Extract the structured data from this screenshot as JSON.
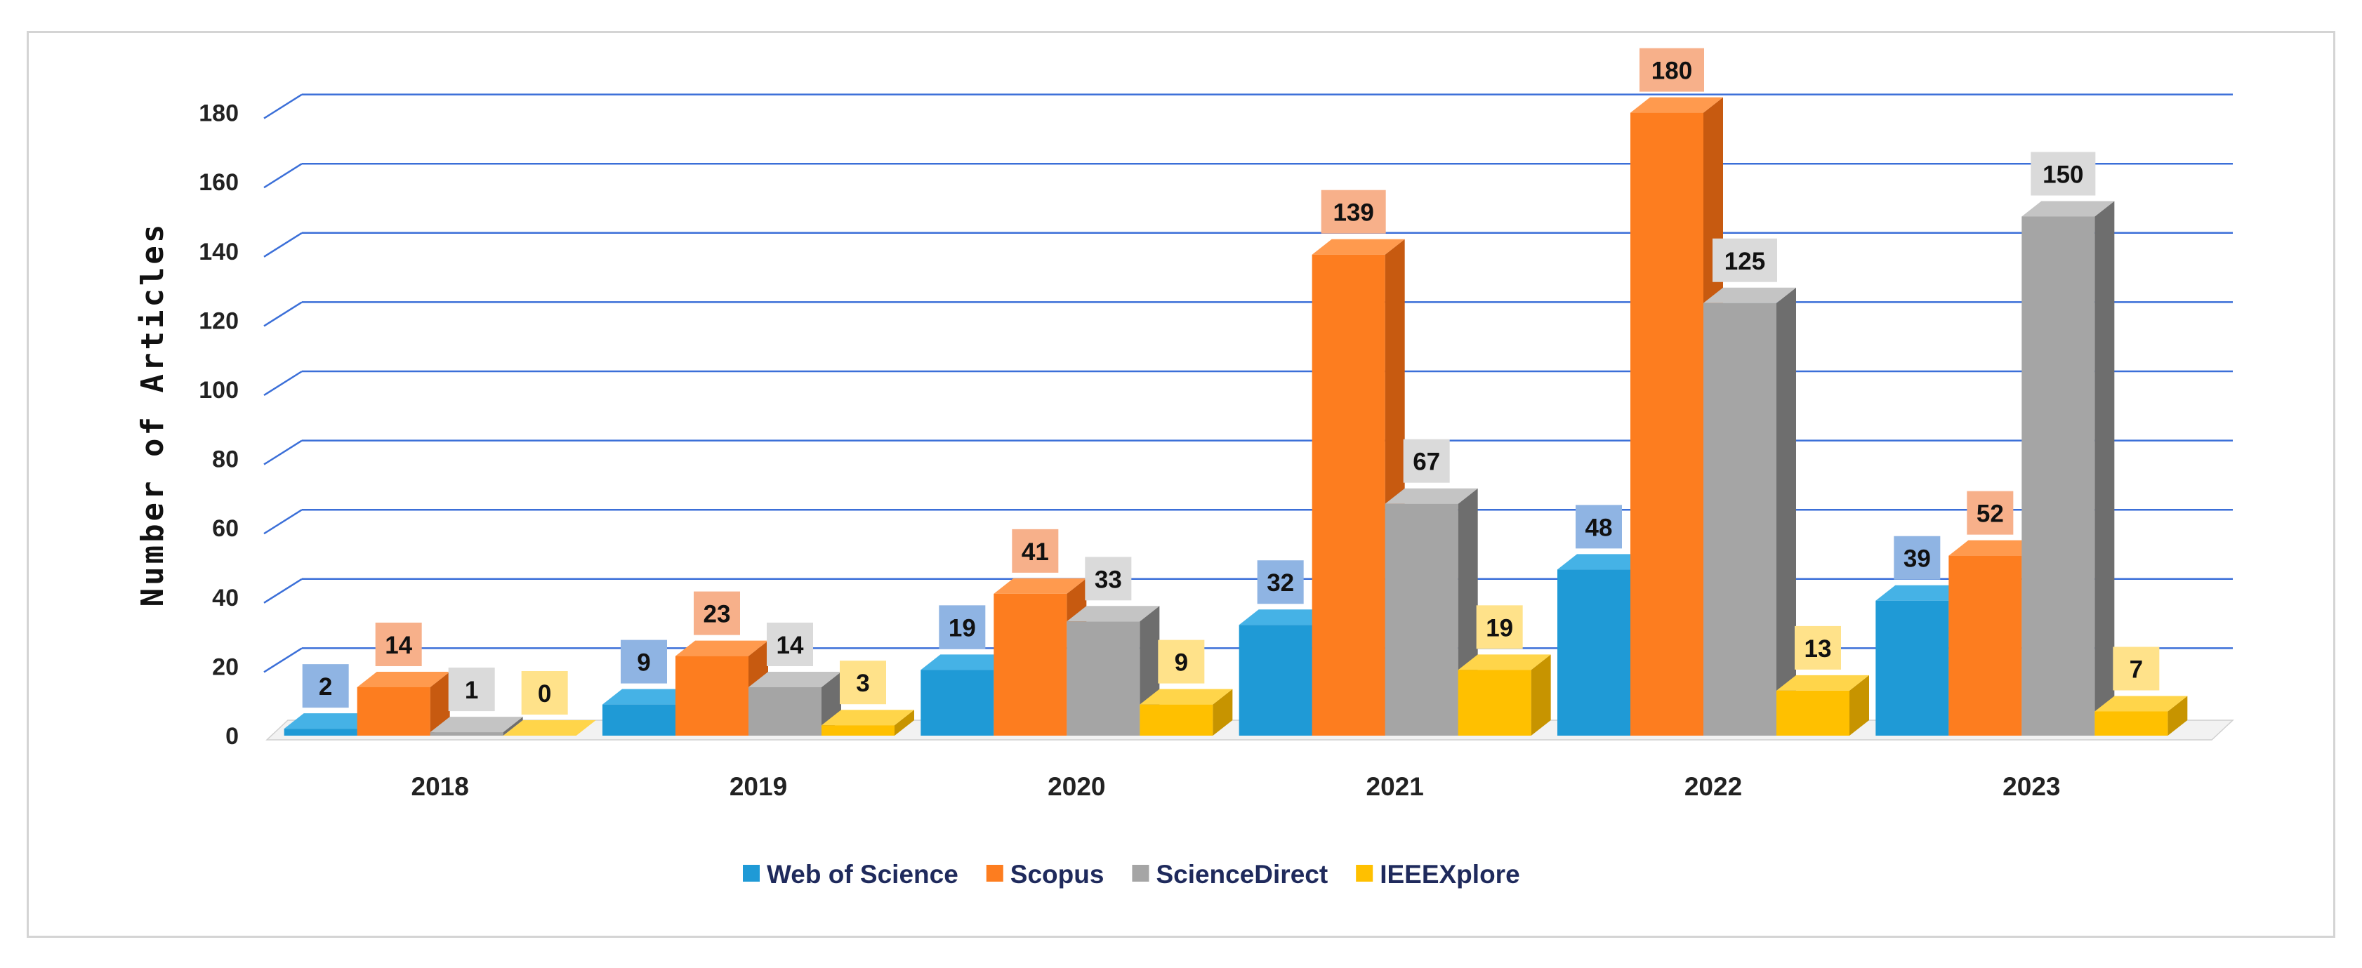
{
  "chart_data": {
    "type": "bar",
    "style": "3d-clustered-column",
    "title": "",
    "xlabel": "",
    "ylabel": "Number of Articles",
    "ylim": [
      0,
      180
    ],
    "yticks": [
      0,
      20,
      40,
      60,
      80,
      100,
      120,
      140,
      160,
      180
    ],
    "grid": true,
    "legend": "bottom-center",
    "categories": [
      "2018",
      "2019",
      "2020",
      "2021",
      "2022",
      "2023"
    ],
    "series": [
      {
        "name": "Web of Science",
        "values": [
          2,
          9,
          19,
          32,
          48,
          39
        ],
        "color": "#1f9ad6",
        "side": "#1674a6",
        "top": "#45b2e6",
        "labelBg": "#8fb4e3"
      },
      {
        "name": "Scopus",
        "values": [
          14,
          23,
          41,
          139,
          180,
          52
        ],
        "color": "#fd7d1f",
        "side": "#c75a10",
        "top": "#ff9a4e",
        "labelBg": "#f7b08a"
      },
      {
        "name": "ScienceDirect",
        "values": [
          1,
          14,
          33,
          67,
          125,
          150
        ],
        "color": "#a5a5a5",
        "side": "#6e6e6e",
        "top": "#c4c4c4",
        "labelBg": "#dadada"
      },
      {
        "name": "IEEEXplore",
        "values": [
          0,
          3,
          9,
          19,
          13,
          7
        ],
        "color": "#ffc000",
        "side": "#c79400",
        "top": "#ffd54a",
        "labelBg": "#ffe28a"
      }
    ]
  }
}
